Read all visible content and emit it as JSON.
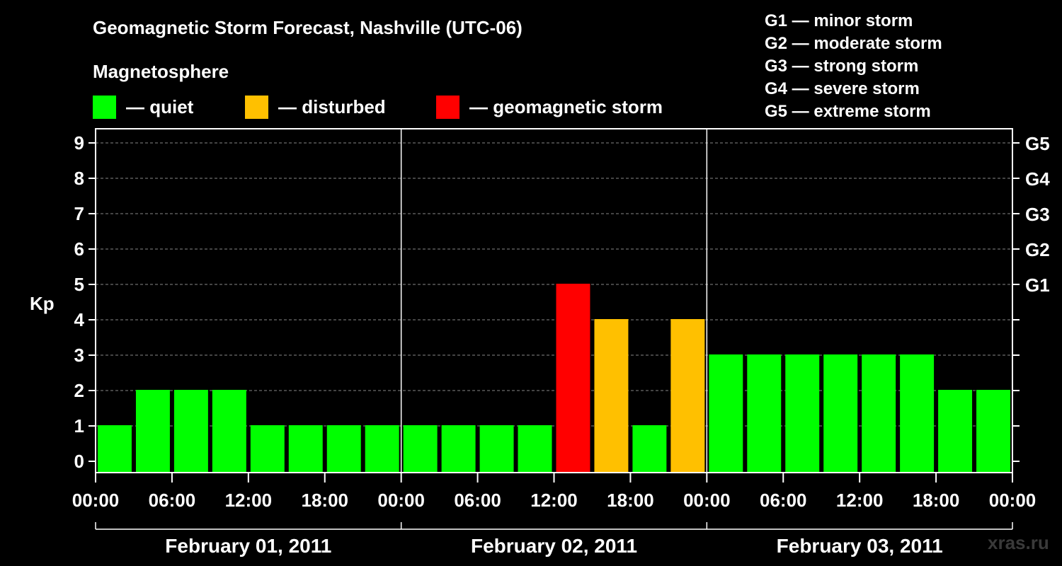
{
  "title": "Geomagnetic Storm Forecast, Nashville (UTC-06)",
  "subtitle": "Magnetosphere",
  "legend": [
    {
      "label": "— quiet",
      "color": "#00ff00"
    },
    {
      "label": "— disturbed",
      "color": "#ffc000"
    },
    {
      "label": "— geomagnetic storm",
      "color": "#ff0000"
    }
  ],
  "storm_scale": [
    "G1 — minor storm",
    "G2 — moderate storm",
    "G3 — strong storm",
    "G4 — severe storm",
    "G5 — extreme storm"
  ],
  "watermark": "xras.ru",
  "chart_data": {
    "type": "bar",
    "title": "Geomagnetic Storm Forecast, Nashville (UTC-06)",
    "ylabel": "Kp",
    "ylim": [
      0,
      9
    ],
    "yticks": [
      "0",
      "1",
      "2",
      "3",
      "4",
      "5",
      "6",
      "7",
      "8",
      "9"
    ],
    "right_ticks": [
      {
        "value": 5,
        "label": "G1"
      },
      {
        "value": 6,
        "label": "G2"
      },
      {
        "value": 7,
        "label": "G3"
      },
      {
        "value": 8,
        "label": "G4"
      },
      {
        "value": 9,
        "label": "G5"
      }
    ],
    "xtick_labels": [
      "00:00",
      "06:00",
      "12:00",
      "18:00",
      "00:00",
      "06:00",
      "12:00",
      "18:00",
      "00:00",
      "06:00",
      "12:00",
      "18:00",
      "00:00"
    ],
    "days": [
      "February 01, 2011",
      "February 02, 2011",
      "February 03, 2011"
    ],
    "grid": "horizontal dashed",
    "values": [
      1,
      2,
      2,
      2,
      1,
      1,
      1,
      1,
      1,
      1,
      1,
      1,
      5,
      4,
      1,
      4,
      3,
      3,
      3,
      3,
      3,
      3,
      2,
      2
    ],
    "colors": {
      "quiet": "#00ff00",
      "disturbed": "#ffc000",
      "storm": "#ff0000"
    }
  }
}
